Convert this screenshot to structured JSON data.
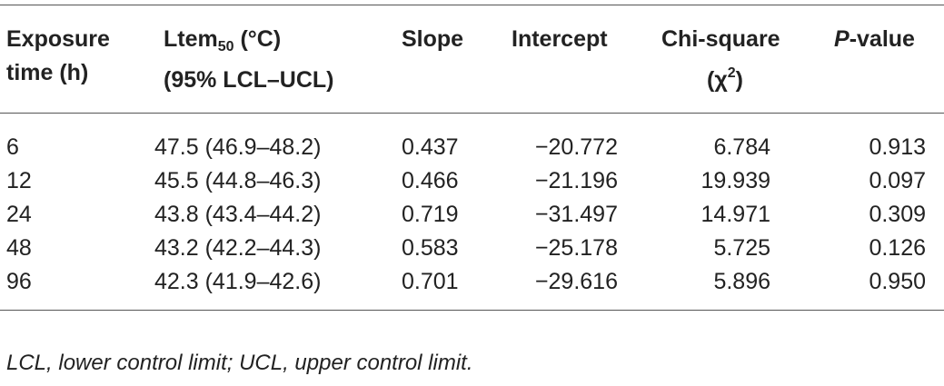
{
  "table": {
    "headers": {
      "exposure": [
        "Exposure",
        "time (h)"
      ],
      "ltem": {
        "base": "Ltem",
        "subscript": "50",
        "unit": " (°C)",
        "line2": "(95% LCL–UCL)"
      },
      "slope": "Slope",
      "intercept": "Intercept",
      "chi": {
        "line1": "Chi-square",
        "open": "(χ",
        "sup": "2",
        "close": ")"
      },
      "pvalue": {
        "italic": "P",
        "rest": "-value"
      }
    },
    "rows": [
      {
        "exposure": "6",
        "ltem": "47.5 (46.9–48.2)",
        "slope": "0.437",
        "intercept": "−20.772",
        "chi": "6.784",
        "p": "0.913"
      },
      {
        "exposure": "12",
        "ltem": "45.5 (44.8–46.3)",
        "slope": "0.466",
        "intercept": "−21.196",
        "chi": "19.939",
        "p": "0.097"
      },
      {
        "exposure": "24",
        "ltem": "43.8 (43.4–44.2)",
        "slope": "0.719",
        "intercept": "−31.497",
        "chi": "14.971",
        "p": "0.309"
      },
      {
        "exposure": "48",
        "ltem": "43.2 (42.2–44.3)",
        "slope": "0.583",
        "intercept": "−25.178",
        "chi": "5.725",
        "p": "0.126"
      },
      {
        "exposure": "96",
        "ltem": "42.3 (41.9–42.6)",
        "slope": "0.701",
        "intercept": "−29.616",
        "chi": "5.896",
        "p": "0.950"
      }
    ]
  },
  "footnote": "LCL, lower control limit; UCL, upper control limit."
}
